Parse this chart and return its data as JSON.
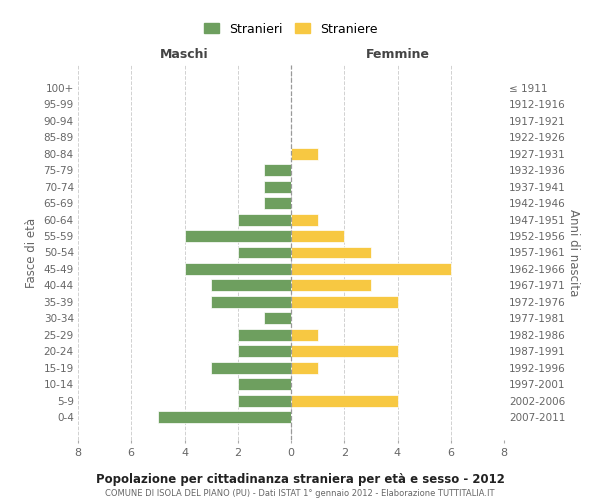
{
  "age_groups": [
    "0-4",
    "5-9",
    "10-14",
    "15-19",
    "20-24",
    "25-29",
    "30-34",
    "35-39",
    "40-44",
    "45-49",
    "50-54",
    "55-59",
    "60-64",
    "65-69",
    "70-74",
    "75-79",
    "80-84",
    "85-89",
    "90-94",
    "95-99",
    "100+"
  ],
  "birth_years": [
    "2007-2011",
    "2002-2006",
    "1997-2001",
    "1992-1996",
    "1987-1991",
    "1982-1986",
    "1977-1981",
    "1972-1976",
    "1967-1971",
    "1962-1966",
    "1957-1961",
    "1952-1956",
    "1947-1951",
    "1942-1946",
    "1937-1941",
    "1932-1936",
    "1927-1931",
    "1922-1926",
    "1917-1921",
    "1912-1916",
    "≤ 1911"
  ],
  "maschi": [
    5,
    2,
    2,
    3,
    2,
    2,
    1,
    3,
    3,
    4,
    2,
    4,
    2,
    1,
    1,
    1,
    0,
    0,
    0,
    0,
    0
  ],
  "femmine": [
    0,
    4,
    0,
    1,
    4,
    1,
    0,
    4,
    3,
    6,
    3,
    2,
    1,
    0,
    0,
    0,
    1,
    0,
    0,
    0,
    0
  ],
  "maschi_color": "#6e9f5f",
  "femmine_color": "#f7c842",
  "xlim": 8,
  "title": "Popolazione per cittadinanza straniera per età e sesso - 2012",
  "subtitle": "COMUNE DI ISOLA DEL PIANO (PU) - Dati ISTAT 1° gennaio 2012 - Elaborazione TUTTITALIA.IT",
  "ylabel_left": "Fasce di età",
  "ylabel_right": "Anni di nascita",
  "legend_maschi": "Stranieri",
  "legend_femmine": "Straniere",
  "maschi_header": "Maschi",
  "femmine_header": "Femmine",
  "background_color": "#ffffff",
  "grid_color": "#cccccc"
}
